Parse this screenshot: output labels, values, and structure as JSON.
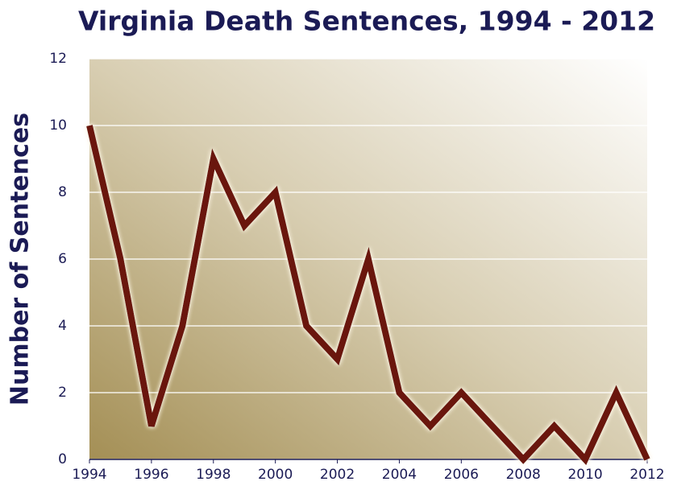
{
  "chart_data": {
    "type": "line",
    "title": "Virginia Death Sentences, 1994 - 2012",
    "y_label": "Number of Sentences",
    "x": [
      1994,
      1995,
      1996,
      1997,
      1998,
      1999,
      2000,
      2001,
      2002,
      2003,
      2004,
      2005,
      2006,
      2007,
      2008,
      2009,
      2010,
      2011,
      2012
    ],
    "values": [
      10,
      6,
      1,
      4,
      9,
      7,
      8,
      4,
      3,
      6,
      2,
      1,
      2,
      1,
      0,
      1,
      0,
      2,
      0
    ],
    "color": "#6b1608",
    "xlim": [
      1994,
      2012
    ],
    "xticks": [
      1994,
      1996,
      1998,
      2000,
      2002,
      2004,
      2006,
      2008,
      2010,
      2012
    ],
    "ylim": [
      0,
      12
    ],
    "yticks": [
      0,
      2,
      4,
      6,
      8,
      10,
      12
    ],
    "grid": true
  }
}
